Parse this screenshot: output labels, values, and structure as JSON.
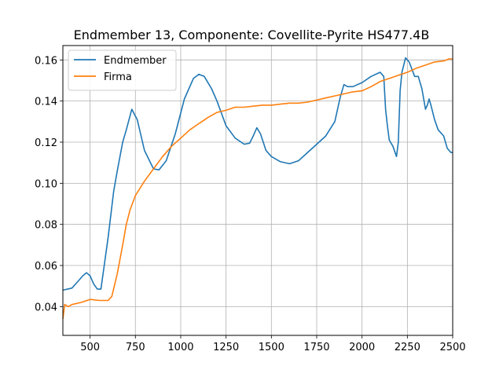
{
  "chart_data": {
    "type": "line",
    "title": "Endmember 13, Componente: Covellite-Pyrite HS477.4B",
    "xlabel": "",
    "ylabel": "",
    "xlim": [
      350,
      2500
    ],
    "ylim": [
      0.026,
      0.167
    ],
    "xticks": [
      500,
      750,
      1000,
      1250,
      1500,
      1750,
      2000,
      2250,
      2500
    ],
    "yticks": [
      0.04,
      0.06,
      0.08,
      0.1,
      0.12,
      0.14,
      0.16
    ],
    "ytick_labels": [
      "0.04",
      "0.06",
      "0.08",
      "0.10",
      "0.12",
      "0.14",
      "0.16"
    ],
    "grid": true,
    "legend_position": "top-left",
    "series": [
      {
        "name": "Endmember",
        "color": "#1f77b4",
        "x": [
          350,
          400,
          430,
          460,
          480,
          500,
          520,
          540,
          560,
          570,
          600,
          630,
          650,
          680,
          700,
          730,
          760,
          800,
          850,
          880,
          920,
          970,
          1020,
          1070,
          1100,
          1130,
          1170,
          1200,
          1250,
          1300,
          1350,
          1380,
          1400,
          1420,
          1440,
          1470,
          1500,
          1550,
          1600,
          1650,
          1700,
          1750,
          1800,
          1850,
          1880,
          1900,
          1920,
          1950,
          2000,
          2050,
          2100,
          2120,
          2130,
          2140,
          2150,
          2170,
          2190,
          2200,
          2210,
          2220,
          2240,
          2260,
          2290,
          2310,
          2330,
          2350,
          2360,
          2370,
          2380,
          2400,
          2420,
          2450,
          2470,
          2490,
          2500
        ],
        "values": [
          0.048,
          0.049,
          0.052,
          0.055,
          0.0565,
          0.055,
          0.051,
          0.0485,
          0.0485,
          0.055,
          0.074,
          0.096,
          0.106,
          0.12,
          0.126,
          0.136,
          0.131,
          0.116,
          0.107,
          0.1065,
          0.111,
          0.124,
          0.141,
          0.151,
          0.153,
          0.152,
          0.146,
          0.14,
          0.128,
          0.122,
          0.119,
          0.1195,
          0.123,
          0.127,
          0.124,
          0.116,
          0.113,
          0.1105,
          0.1095,
          0.111,
          0.115,
          0.119,
          0.123,
          0.13,
          0.142,
          0.148,
          0.147,
          0.147,
          0.149,
          0.152,
          0.154,
          0.152,
          0.136,
          0.128,
          0.121,
          0.118,
          0.113,
          0.12,
          0.145,
          0.154,
          0.161,
          0.159,
          0.152,
          0.152,
          0.146,
          0.136,
          0.138,
          0.141,
          0.138,
          0.131,
          0.126,
          0.123,
          0.117,
          0.115,
          0.115
        ]
      },
      {
        "name": "Firma",
        "color": "#ff7f0e",
        "x": [
          350,
          360,
          380,
          400,
          450,
          500,
          550,
          600,
          620,
          650,
          680,
          700,
          720,
          750,
          800,
          850,
          900,
          950,
          1000,
          1050,
          1100,
          1150,
          1200,
          1250,
          1300,
          1350,
          1400,
          1450,
          1500,
          1550,
          1600,
          1650,
          1700,
          1750,
          1800,
          1850,
          1900,
          1950,
          2000,
          2050,
          2100,
          2150,
          2200,
          2250,
          2300,
          2350,
          2400,
          2450,
          2480,
          2490,
          2500
        ],
        "values": [
          0.034,
          0.041,
          0.04,
          0.041,
          0.042,
          0.0435,
          0.043,
          0.043,
          0.045,
          0.056,
          0.07,
          0.08,
          0.087,
          0.094,
          0.101,
          0.107,
          0.113,
          0.118,
          0.122,
          0.126,
          0.129,
          0.132,
          0.1345,
          0.1355,
          0.137,
          0.137,
          0.1375,
          0.138,
          0.138,
          0.1385,
          0.139,
          0.139,
          0.1395,
          0.1405,
          0.1415,
          0.1425,
          0.1435,
          0.1445,
          0.145,
          0.147,
          0.1495,
          0.151,
          0.1525,
          0.154,
          0.156,
          0.1575,
          0.159,
          0.1595,
          0.1605,
          0.1605,
          0.1605
        ]
      }
    ]
  }
}
